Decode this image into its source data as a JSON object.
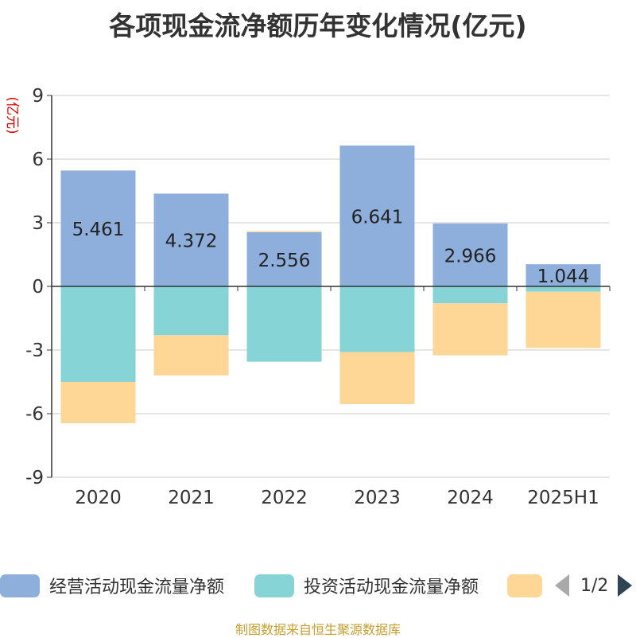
{
  "chart_data": {
    "type": "bar",
    "stacked": true,
    "title": "各项现金流净额历年变化情况(亿元)",
    "ylabel": "(亿元)",
    "categories": [
      "2020",
      "2021",
      "2022",
      "2023",
      "2024",
      "2025H1"
    ],
    "ylim": [
      -9,
      9
    ],
    "yticks": [
      9,
      6,
      3,
      0,
      -3,
      -6,
      -9
    ],
    "grid": true,
    "legend_position": "bottom",
    "series": [
      {
        "name": "经营活动现金流量净额",
        "color": "#8eaedb",
        "values": [
          5.461,
          4.372,
          2.556,
          6.641,
          2.966,
          1.044
        ],
        "labels": [
          "5.461",
          "4.372",
          "2.556",
          "6.641",
          "2.966",
          "1.044"
        ]
      },
      {
        "name": "投资活动现金流量净额",
        "color": "#87d4d6",
        "values": [
          -4.5,
          -2.3,
          -3.55,
          -3.1,
          -0.8,
          -0.25
        ]
      },
      {
        "name": "",
        "color": "#fed695",
        "values": [
          -1.95,
          -1.9,
          0.05,
          -2.45,
          -2.45,
          -2.65
        ]
      }
    ]
  },
  "legend": {
    "items": [
      "经营活动现金流量净额",
      "投资活动现金流量净额",
      ""
    ],
    "page_indicator": "1/2"
  },
  "source": "制图数据来自恒生聚源数据库"
}
